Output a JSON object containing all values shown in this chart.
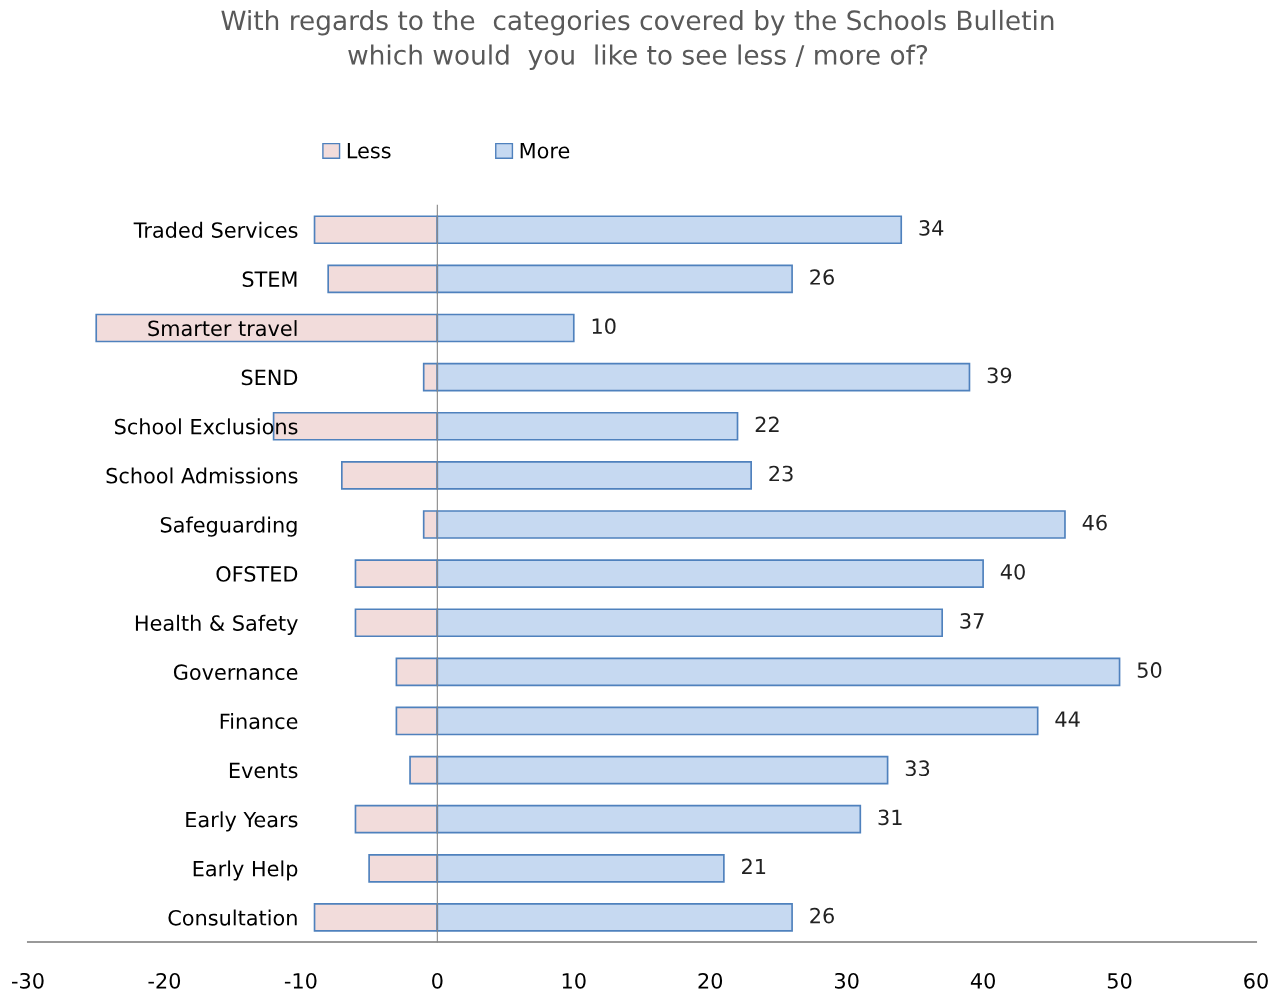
{
  "chart_data": {
    "type": "bar",
    "orientation": "horizontal",
    "title": "With regards to the  categories covered by the Schools Bulletin\nwhich would  you  like to see less / more of?",
    "categories": [
      "Traded Services",
      "STEM",
      "Smarter travel",
      "SEND",
      "School Exclusions",
      "School Admissions",
      "Safeguarding",
      "OFSTED",
      "Health & Safety",
      "Governance",
      "Finance",
      "Events",
      "Early Years",
      "Early Help",
      "Consultation"
    ],
    "series": [
      {
        "name": "Less",
        "color": "#f2dcdb",
        "values": [
          -9,
          -8,
          -25,
          -1,
          -12,
          -7,
          -1,
          -6,
          -6,
          -3,
          -3,
          -2,
          -6,
          -5,
          -9
        ]
      },
      {
        "name": "More",
        "color": "#c6d9f1",
        "values": [
          34,
          26,
          10,
          39,
          22,
          23,
          46,
          40,
          37,
          50,
          44,
          33,
          31,
          21,
          26
        ],
        "value_labels": [
          "34",
          "26",
          "10",
          "39",
          "22",
          "23",
          "46",
          "40",
          "37",
          "50",
          "44",
          "33",
          "31",
          "21",
          "26"
        ]
      }
    ],
    "xlim": [
      -30,
      60
    ],
    "xticks": [
      -30,
      -20,
      -10,
      0,
      10,
      20,
      30,
      40,
      50,
      60
    ],
    "stacked": true,
    "legend": "top"
  }
}
